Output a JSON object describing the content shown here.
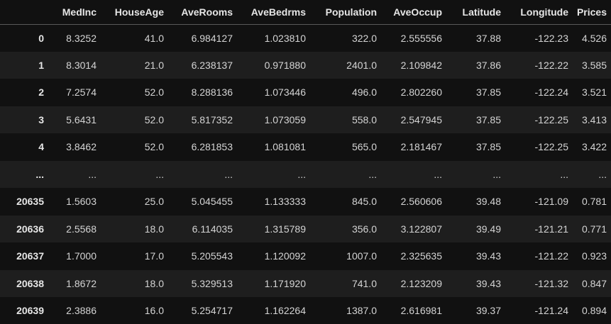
{
  "table": {
    "columns": [
      "MedInc",
      "HouseAge",
      "AveRooms",
      "AveBedrms",
      "Population",
      "AveOccup",
      "Latitude",
      "Longitude",
      "Prices"
    ],
    "rows": [
      {
        "index": "0",
        "cells": [
          "8.3252",
          "41.0",
          "6.984127",
          "1.023810",
          "322.0",
          "2.555556",
          "37.88",
          "-122.23",
          "4.526"
        ]
      },
      {
        "index": "1",
        "cells": [
          "8.3014",
          "21.0",
          "6.238137",
          "0.971880",
          "2401.0",
          "2.109842",
          "37.86",
          "-122.22",
          "3.585"
        ]
      },
      {
        "index": "2",
        "cells": [
          "7.2574",
          "52.0",
          "8.288136",
          "1.073446",
          "496.0",
          "2.802260",
          "37.85",
          "-122.24",
          "3.521"
        ]
      },
      {
        "index": "3",
        "cells": [
          "5.6431",
          "52.0",
          "5.817352",
          "1.073059",
          "558.0",
          "2.547945",
          "37.85",
          "-122.25",
          "3.413"
        ]
      },
      {
        "index": "4",
        "cells": [
          "3.8462",
          "52.0",
          "6.281853",
          "1.081081",
          "565.0",
          "2.181467",
          "37.85",
          "-122.25",
          "3.422"
        ]
      },
      {
        "index": "...",
        "cells": [
          "...",
          "...",
          "...",
          "...",
          "...",
          "...",
          "...",
          "...",
          "..."
        ]
      },
      {
        "index": "20635",
        "cells": [
          "1.5603",
          "25.0",
          "5.045455",
          "1.133333",
          "845.0",
          "2.560606",
          "39.48",
          "-121.09",
          "0.781"
        ]
      },
      {
        "index": "20636",
        "cells": [
          "2.5568",
          "18.0",
          "6.114035",
          "1.315789",
          "356.0",
          "3.122807",
          "39.49",
          "-121.21",
          "0.771"
        ]
      },
      {
        "index": "20637",
        "cells": [
          "1.7000",
          "17.0",
          "5.205543",
          "1.120092",
          "1007.0",
          "2.325635",
          "39.43",
          "-121.22",
          "0.923"
        ]
      },
      {
        "index": "20638",
        "cells": [
          "1.8672",
          "18.0",
          "5.329513",
          "1.171920",
          "741.0",
          "2.123209",
          "39.43",
          "-121.32",
          "0.847"
        ]
      },
      {
        "index": "20639",
        "cells": [
          "2.3886",
          "16.0",
          "5.254717",
          "1.162264",
          "1387.0",
          "2.616981",
          "39.37",
          "-121.24",
          "0.894"
        ]
      }
    ]
  }
}
